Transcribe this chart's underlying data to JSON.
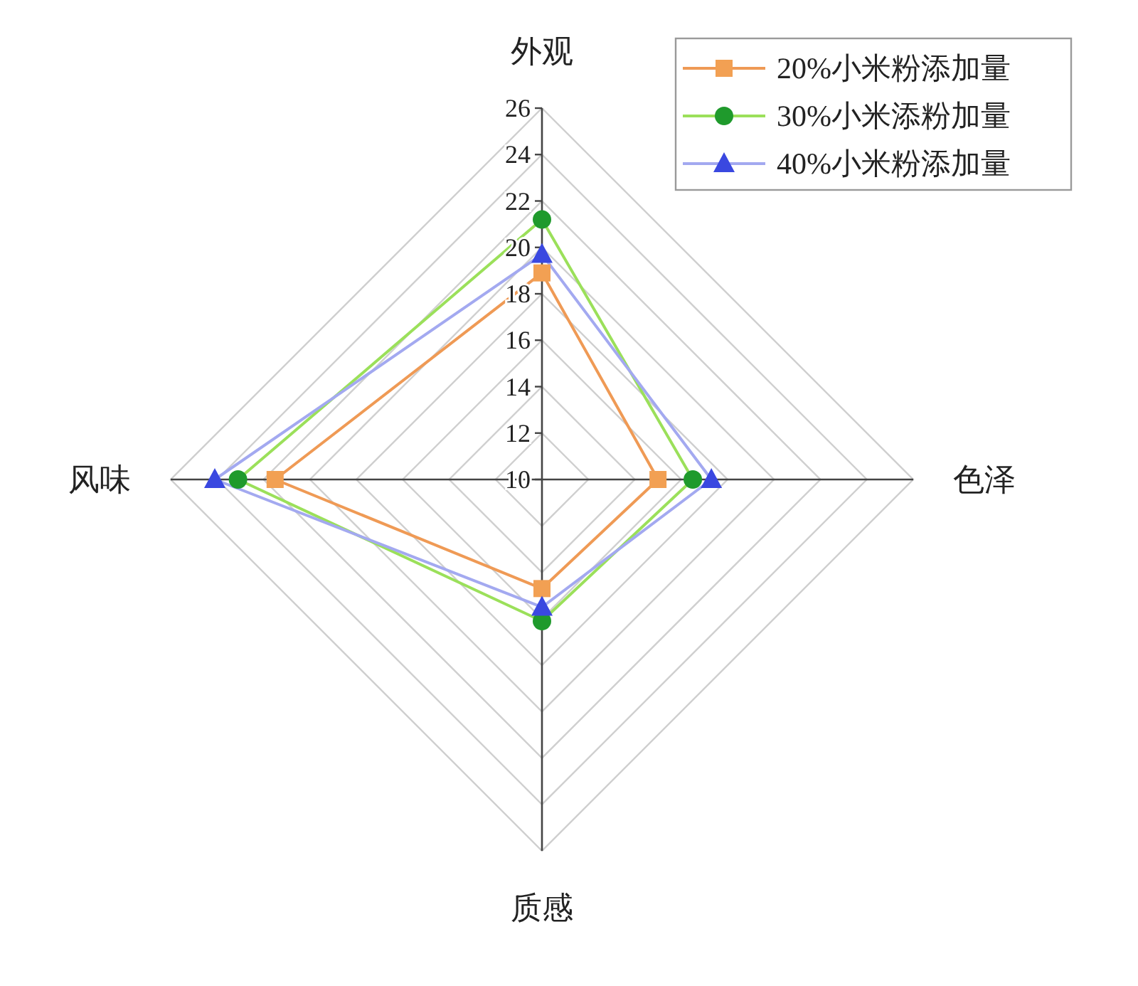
{
  "chart_data": {
    "type": "radar",
    "categories": [
      "外观",
      "色泽",
      "质感",
      "风味"
    ],
    "series": [
      {
        "name": "20%小米粉添加量",
        "color": "#ef9a55",
        "colors": [
          "#f2a053",
          "#f2a053",
          "#f2a053",
          "#f2a053"
        ],
        "marker": "square",
        "values": [
          18.9,
          15.0,
          14.7,
          21.5
        ]
      },
      {
        "name": "30%小米添粉加量",
        "color": "#9be05a",
        "colors": [
          "#1f9a2c",
          "#1f9a2c",
          "#1f9a2c",
          "#1f9a2c"
        ],
        "marker": "circle",
        "values": [
          21.2,
          16.5,
          16.1,
          23.1
        ]
      },
      {
        "name": "40%小米粉添加量",
        "color": "#a3a9f0",
        "colors": [
          "#3a48e0",
          "#3a48e0",
          "#3a48e0",
          "#3a48e0"
        ],
        "marker": "triangle",
        "values": [
          19.7,
          17.3,
          15.5,
          24.1
        ]
      }
    ],
    "ylim": [
      10,
      26
    ],
    "yticks": [
      10,
      12,
      14,
      16,
      18,
      20,
      22,
      24,
      26
    ],
    "grid": true,
    "legend": "top right"
  }
}
